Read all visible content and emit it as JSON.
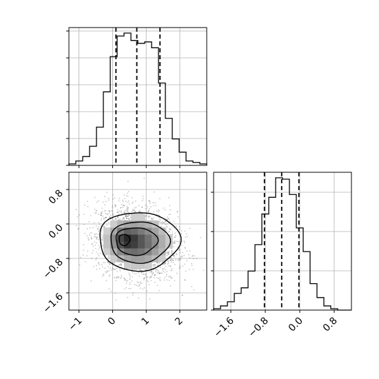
{
  "chart_data": [
    {
      "type": "bar",
      "panel": "top-left histogram (x)",
      "title": "",
      "xlabel": "",
      "ylabel": "",
      "xlim": [
        -1.3,
        2.8
      ],
      "grid": true,
      "bin_edges": [
        -1.3,
        -1.095,
        -0.89,
        -0.685,
        -0.48,
        -0.275,
        -0.07,
        0.135,
        0.34,
        0.545,
        0.75,
        0.955,
        1.16,
        1.365,
        1.57,
        1.775,
        1.98,
        2.185,
        2.39,
        2.595,
        2.8
      ],
      "counts": [
        0.01,
        0.03,
        0.06,
        0.13,
        0.26,
        0.5,
        0.74,
        0.88,
        0.9,
        0.85,
        0.83,
        0.84,
        0.8,
        0.56,
        0.32,
        0.18,
        0.09,
        0.03,
        0.02,
        0.01
      ],
      "quantile_lines": [
        0.1,
        0.72,
        1.41
      ],
      "x_ticks": [
        "−1",
        "0",
        "1",
        "2"
      ]
    },
    {
      "type": "heatmap",
      "panel": "bottom-left 2D density (x vs y)",
      "xlim": [
        -1.3,
        2.8
      ],
      "ylim": [
        -2.0,
        1.2
      ],
      "grid": true,
      "x_ticks": [
        "−1",
        "0",
        "1",
        "2"
      ],
      "y_ticks": [
        "0.8",
        "0.0",
        "−0.8",
        "−1.6"
      ],
      "density_peak": [
        0.4,
        -0.4
      ],
      "contour_levels": 4
    },
    {
      "type": "bar",
      "panel": "bottom-right histogram (y)",
      "xlim": [
        -2.0,
        1.2
      ],
      "grid": true,
      "bin_edges": [
        -2.0,
        -1.84,
        -1.68,
        -1.52,
        -1.36,
        -1.2,
        -1.04,
        -0.88,
        -0.72,
        -0.56,
        -0.4,
        -0.24,
        -0.08,
        0.08,
        0.24,
        0.4,
        0.56,
        0.72,
        0.88,
        1.04,
        1.2
      ],
      "counts": [
        0.01,
        0.03,
        0.06,
        0.12,
        0.16,
        0.28,
        0.47,
        0.69,
        0.81,
        0.95,
        0.94,
        0.83,
        0.59,
        0.42,
        0.19,
        0.09,
        0.03,
        0.01,
        0.0,
        0.0
      ],
      "quantile_lines": [
        -0.82,
        -0.42,
        -0.02
      ],
      "x_ticks": [
        "−1.6",
        "−0.8",
        "0.0",
        "0.8"
      ]
    }
  ]
}
